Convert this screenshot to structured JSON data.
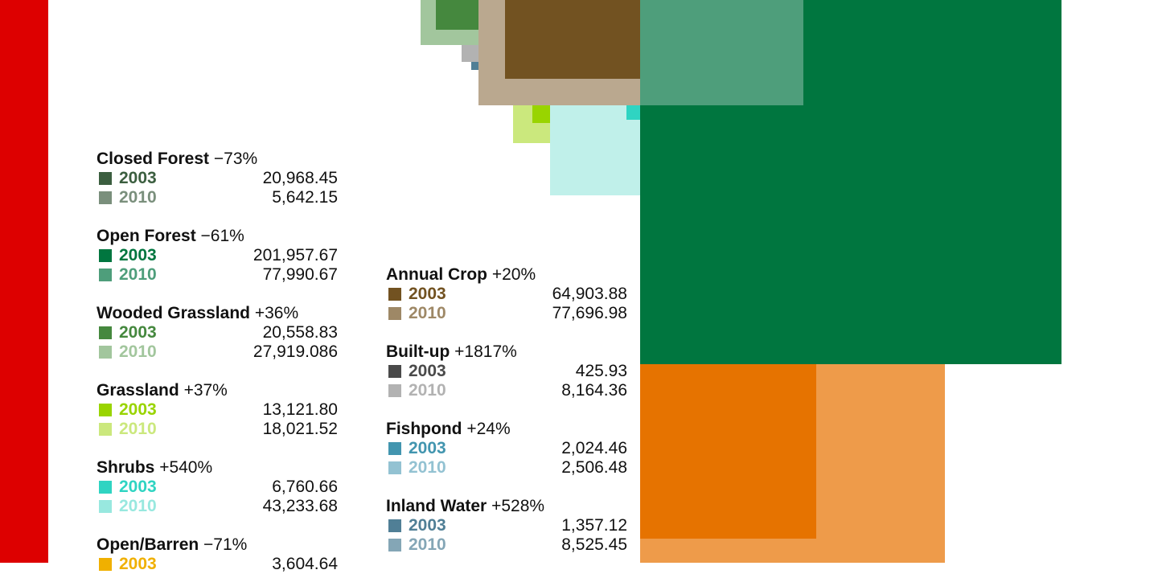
{
  "chart_data": {
    "type": "proportional-squares",
    "unit": "",
    "categories": [
      {
        "name": "Closed Forest",
        "change": "−73%",
        "y2003": "20,968.45",
        "y2010": "5,642.15",
        "v2003": 20968.45,
        "v2010": 5642.15,
        "c2003": "#3b5e3f",
        "c2010": "#7a8f7c"
      },
      {
        "name": "Open Forest",
        "change": "−61%",
        "y2003": "201,957.67",
        "y2010": "77,990.67",
        "v2003": 201957.67,
        "v2010": 77990.67,
        "c2003": "#00763f",
        "c2010": "#4e9e7b"
      },
      {
        "name": "Wooded Grassland",
        "change": "+36%",
        "y2003": "20,558.83",
        "y2010": "27,919.086",
        "v2003": 20558.83,
        "v2010": 27919.086,
        "c2003": "#45883e",
        "c2010": "#a2c69d"
      },
      {
        "name": "Grassland",
        "change": "+37%",
        "y2003": "13,121.80",
        "y2010": "18,021.52",
        "v2003": 13121.8,
        "v2010": 18021.52,
        "c2003": "#99d400",
        "c2010": "#cbe87d"
      },
      {
        "name": "Shrubs",
        "change": "+540%",
        "y2003": "6,760.66",
        "y2010": "43,233.68",
        "v2003": 6760.66,
        "v2010": 43233.68,
        "c2003": "#2fd4c2",
        "c2010": "#98e8df"
      },
      {
        "name": "Open/Barren",
        "change": "−71%",
        "y2003": "3,604.64",
        "y2010": "",
        "v2003": 3604.64,
        "v2010": null,
        "c2003": "#f0b000",
        "c2010": "#f5d06a"
      },
      {
        "name": "Annual Crop",
        "change": "+20%",
        "y2003": "64,903.88",
        "y2010": "77,696.98",
        "v2003": 64903.88,
        "v2010": 77696.98,
        "c2003": "#725221",
        "c2010": "#9e8866"
      },
      {
        "name": "Built-up",
        "change": "+1817%",
        "y2003": "425.93",
        "y2010": "8,164.36",
        "v2003": 425.93,
        "v2010": 8164.36,
        "c2003": "#4a4a4a",
        "c2010": "#b2b2b2"
      },
      {
        "name": "Fishpond",
        "change": "+24%",
        "y2003": "2,024.46",
        "y2010": "2,506.48",
        "v2003": 2024.46,
        "v2010": 2506.48,
        "c2003": "#4295af",
        "c2010": "#93c2d2"
      },
      {
        "name": "Inland Water",
        "change": "+528%",
        "y2003": "1,357.12",
        "y2010": "8,525.45",
        "v2003": 1357.12,
        "v2010": 8525.45,
        "c2003": "#507f96",
        "c2010": "#84a6b6"
      }
    ],
    "legend_year_labels": [
      "2003",
      "2010"
    ]
  },
  "colors": {
    "side_band": "#dd0000",
    "orange_a": "#e67300",
    "orange_b": "#ee9b4a"
  }
}
